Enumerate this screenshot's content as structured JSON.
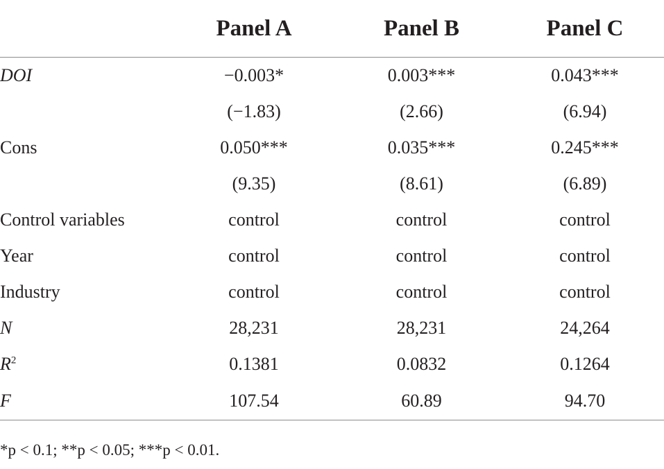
{
  "table": {
    "headers": [
      "",
      "Panel A",
      "Panel B",
      "Panel C"
    ],
    "rows": [
      {
        "label": "DOI",
        "italic": true,
        "values": [
          "−0.003*",
          "0.003***",
          "0.043***"
        ]
      },
      {
        "label": "",
        "italic": false,
        "values": [
          "(−1.83)",
          "(2.66)",
          "(6.94)"
        ]
      },
      {
        "label": "Cons",
        "italic": false,
        "values": [
          "0.050***",
          "0.035***",
          "0.245***"
        ]
      },
      {
        "label": "",
        "italic": false,
        "values": [
          "(9.35)",
          "(8.61)",
          "(6.89)"
        ]
      },
      {
        "label": "Control variables",
        "italic": false,
        "values": [
          "control",
          "control",
          "control"
        ]
      },
      {
        "label": "Year",
        "italic": false,
        "values": [
          "control",
          "control",
          "control"
        ]
      },
      {
        "label": "Industry",
        "italic": false,
        "values": [
          "control",
          "control",
          "control"
        ]
      },
      {
        "label": "N",
        "italic": true,
        "values": [
          "28,231",
          "28,231",
          "24,264"
        ]
      },
      {
        "label": "R",
        "label_sup": "2",
        "italic": true,
        "values": [
          "0.1381",
          "0.0832",
          "0.1264"
        ]
      },
      {
        "label": "F",
        "italic": true,
        "values": [
          "107.54",
          "60.89",
          "94.70"
        ]
      }
    ]
  },
  "note": "*p < 0.1; **p < 0.05; ***p < 0.01."
}
